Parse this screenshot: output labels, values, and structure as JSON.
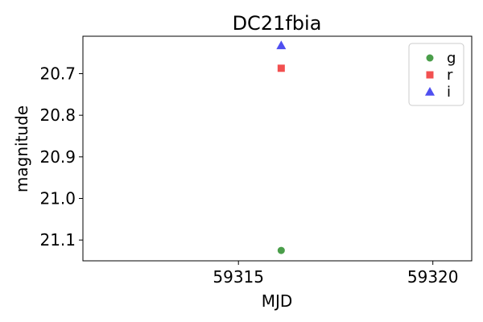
{
  "chart_data": {
    "type": "scatter",
    "title": "DC21fbia",
    "xlabel": "MJD",
    "ylabel": "magnitude",
    "xlim": [
      59311.0,
      59321.0
    ],
    "ylim": [
      21.15,
      20.61
    ],
    "y_inverted": true,
    "grid": false,
    "legend_position": "top-right",
    "x_ticks": [
      59315,
      59320
    ],
    "y_ticks": [
      20.7,
      20.8,
      20.9,
      21.0,
      21.1
    ],
    "x_tick_labels": [
      "59315",
      "59320"
    ],
    "y_tick_labels": [
      "20.7",
      "20.8",
      "20.9",
      "21.0",
      "21.1"
    ],
    "series": [
      {
        "name": "g",
        "color": "#4a9e4a",
        "marker": "circle",
        "points": [
          {
            "x": 59316.1,
            "y": 21.125
          }
        ]
      },
      {
        "name": "r",
        "color": "#f25050",
        "marker": "square",
        "points": [
          {
            "x": 59316.1,
            "y": 20.687
          }
        ]
      },
      {
        "name": "i",
        "color": "#4f4ff0",
        "marker": "triangle",
        "points": [
          {
            "x": 59316.1,
            "y": 20.632
          }
        ]
      }
    ]
  }
}
